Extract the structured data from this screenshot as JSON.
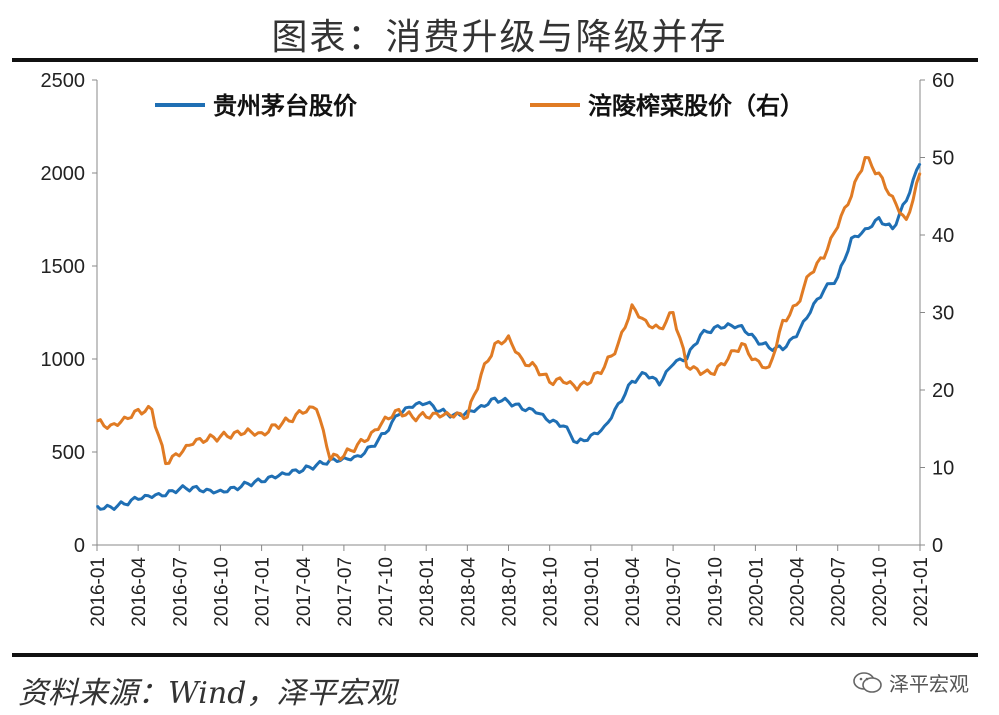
{
  "title": "图表：消费升级与降级并存",
  "source": "资料来源：Wind，泽平宏观",
  "watermark": {
    "icon": "wechat-icon",
    "text": "泽平宏观"
  },
  "chart_data": {
    "type": "line",
    "title": "图表：消费升级与降级并存",
    "x": [
      "2016-01",
      "2016-02",
      "2016-03",
      "2016-04",
      "2016-05",
      "2016-06",
      "2016-07",
      "2016-08",
      "2016-09",
      "2016-10",
      "2016-11",
      "2016-12",
      "2017-01",
      "2017-02",
      "2017-03",
      "2017-04",
      "2017-05",
      "2017-06",
      "2017-07",
      "2017-08",
      "2017-09",
      "2017-10",
      "2017-11",
      "2017-12",
      "2018-01",
      "2018-02",
      "2018-03",
      "2018-04",
      "2018-05",
      "2018-06",
      "2018-07",
      "2018-08",
      "2018-09",
      "2018-10",
      "2018-11",
      "2018-12",
      "2019-01",
      "2019-02",
      "2019-03",
      "2019-04",
      "2019-05",
      "2019-06",
      "2019-07",
      "2019-08",
      "2019-09",
      "2019-10",
      "2019-11",
      "2019-12",
      "2020-01",
      "2020-02",
      "2020-03",
      "2020-04",
      "2020-05",
      "2020-06",
      "2020-07",
      "2020-08",
      "2020-09",
      "2020-10",
      "2020-11",
      "2020-12",
      "2021-01"
    ],
    "xticks": [
      "2016-01",
      "2016-04",
      "2016-07",
      "2016-10",
      "2017-01",
      "2017-04",
      "2017-07",
      "2017-10",
      "2018-01",
      "2018-04",
      "2018-07",
      "2018-10",
      "2019-01",
      "2019-04",
      "2019-07",
      "2019-10",
      "2020-01",
      "2020-04",
      "2020-07",
      "2020-10",
      "2021-01"
    ],
    "series": [
      {
        "name": "贵州茅台股价",
        "axis": "left",
        "color": "#1f6fb4",
        "values": [
          210,
          205,
          220,
          245,
          255,
          265,
          300,
          310,
          300,
          295,
          310,
          330,
          340,
          360,
          380,
          400,
          430,
          460,
          470,
          480,
          530,
          600,
          700,
          740,
          760,
          720,
          700,
          720,
          750,
          790,
          770,
          730,
          710,
          660,
          640,
          550,
          590,
          640,
          760,
          880,
          920,
          860,
          970,
          1000,
          1130,
          1170,
          1190,
          1180,
          1110,
          1060,
          1050,
          1120,
          1250,
          1370,
          1440,
          1650,
          1700,
          1760,
          1700,
          1850,
          2050
        ]
      },
      {
        "name": "涪陵榨菜股价（右）",
        "axis": "right",
        "color": "#e07b24",
        "values": [
          16,
          15.5,
          16.5,
          17.5,
          17.5,
          10.5,
          11.5,
          13,
          13.5,
          14,
          14.5,
          15,
          14.5,
          15.5,
          16,
          17,
          17.5,
          11,
          11.5,
          13,
          14.5,
          16.5,
          17.5,
          16.5,
          16.5,
          16.5,
          16.5,
          16.5,
          22,
          26,
          27,
          24,
          23,
          21,
          21,
          20,
          21,
          23,
          26,
          31,
          29,
          28,
          30,
          23,
          22,
          22,
          24,
          26,
          24,
          23,
          29,
          31,
          35,
          37,
          41,
          45,
          50,
          48,
          45,
          42,
          48
        ]
      }
    ],
    "ylim_left": [
      0,
      2500
    ],
    "yticks_left": [
      0,
      500,
      1000,
      1500,
      2000,
      2500
    ],
    "ylim_right": [
      0,
      60
    ],
    "yticks_right": [
      0,
      10,
      20,
      30,
      40,
      50,
      60
    ],
    "legend": "top"
  }
}
